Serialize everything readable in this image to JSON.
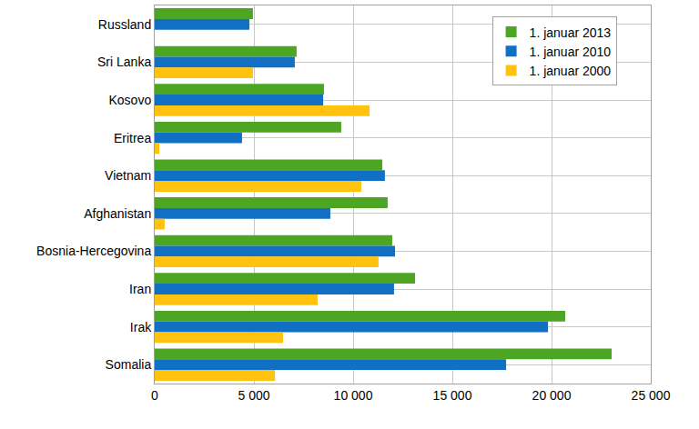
{
  "chart_data": {
    "type": "bar",
    "orientation": "horizontal",
    "categories": [
      "Russland",
      "Sri Lanka",
      "Kosovo",
      "Eritrea",
      "Vietnam",
      "Afghanistan",
      "Bosnia-Hercegovina",
      "Iran",
      "Irak",
      "Somalia"
    ],
    "series": [
      {
        "name": "1. januar 2013",
        "color": "#4ca623",
        "values": [
          4950,
          7150,
          8530,
          9400,
          11470,
          11740,
          11970,
          13120,
          20690,
          23030
        ]
      },
      {
        "name": "1. januar 2010",
        "color": "#1170c4",
        "values": [
          4770,
          7060,
          8490,
          4400,
          11600,
          8850,
          12110,
          12060,
          19820,
          17710
        ]
      },
      {
        "name": "1. januar 2000",
        "color": "#ffc20e",
        "values": [
          null,
          4950,
          10830,
          230,
          10410,
          500,
          11280,
          8210,
          6470,
          6060
        ]
      }
    ],
    "xlim": [
      0,
      25000
    ],
    "xticks": [
      0,
      {
        "value": 5000,
        "label": "5 000"
      },
      {
        "value": 10000,
        "label": "10 000"
      },
      {
        "value": 15000,
        "label": "15 000"
      },
      {
        "value": 20000,
        "label": "20 000"
      },
      {
        "value": 25000,
        "label": "25 000"
      }
    ],
    "grid": true,
    "legend": "top right"
  }
}
